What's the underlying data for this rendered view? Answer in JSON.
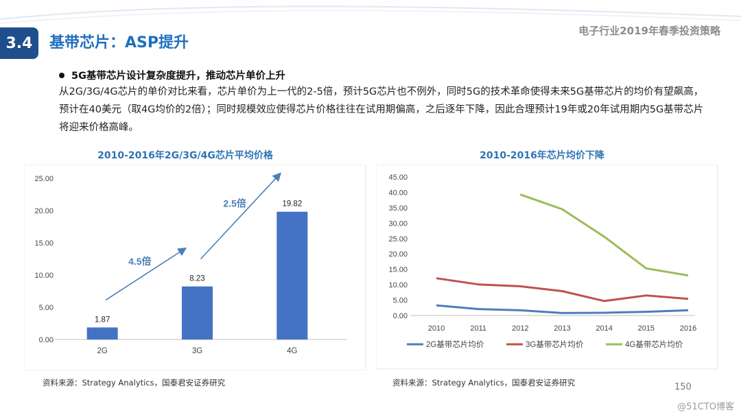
{
  "header": {
    "section_number": "3.4",
    "section_title": "基带芯片：ASP提升",
    "report_title": "电子行业2019年春季投资策略"
  },
  "body": {
    "bullet": "5G基带芯片设计复杂度提升，推动芯片单价上升",
    "paragraph": "从2G/3G/4G芯片的单价对比来看，芯片单价为上一代的2-5倍，预计5G芯片也不例外，同时5G的技术革命使得未来5G基带芯片的均价有望飙高，预计在40美元（取4G均价的2倍）；同时规模效应使得芯片价格往往在试用期偏高，之后逐年下降，因此合理预计19年或20年试用期内5G基带芯片将迎来价格高峰。"
  },
  "footer": {
    "source_left": "资料来源：Strategy Analytics，国泰君安证券研究",
    "source_right": "资料来源：Strategy Analytics，国泰君安证券研究",
    "page_number": "150",
    "watermark": "@51CTO博客"
  },
  "colors": {
    "accent": "#1f6fc0",
    "bar": "#4472c4",
    "line_2g": "#4a7ebb",
    "line_3g": "#c0504d",
    "line_4g": "#9bbb59"
  },
  "chart_data": [
    {
      "type": "bar",
      "title": "2010-2016年2G/3G/4G芯片平均价格",
      "categories": [
        "2G",
        "3G",
        "4G"
      ],
      "values": [
        1.87,
        8.23,
        19.82
      ],
      "data_labels": [
        "1.87",
        "8.23",
        "19.82"
      ],
      "ylim": [
        0,
        25
      ],
      "yticks": [
        "0.00",
        "5.00",
        "10.00",
        "15.00",
        "20.00",
        "25.00"
      ],
      "grid": false,
      "annotations": [
        {
          "text": "4.5倍",
          "from": "2G",
          "to": "3G"
        },
        {
          "text": "2.5倍",
          "from": "3G",
          "to": "4G"
        }
      ]
    },
    {
      "type": "line",
      "title": "2010-2016年芯片均价下降",
      "x": [
        "2010",
        "2011",
        "2012",
        "2013",
        "2014",
        "2015",
        "2016"
      ],
      "ylim": [
        0,
        45
      ],
      "yticks": [
        "0.00",
        "5.00",
        "10.00",
        "15.00",
        "20.00",
        "25.00",
        "30.00",
        "35.00",
        "40.00",
        "45.00"
      ],
      "grid": false,
      "legend": "bottom",
      "series": [
        {
          "name": "2G基带芯片均价",
          "values": [
            3.3,
            2.1,
            1.7,
            0.8,
            0.9,
            1.2,
            1.7
          ]
        },
        {
          "name": "3G基带芯片均价",
          "values": [
            12.1,
            10.1,
            9.5,
            7.9,
            4.7,
            6.5,
            5.4
          ]
        },
        {
          "name": "4G基带芯片均价",
          "values": [
            null,
            null,
            39.3,
            34.5,
            25.6,
            15.3,
            13.0
          ]
        }
      ]
    }
  ]
}
